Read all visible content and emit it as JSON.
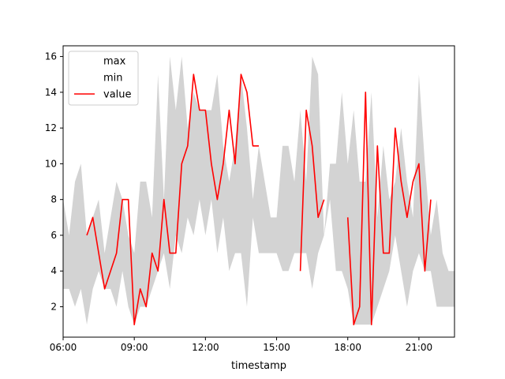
{
  "chart_data": {
    "type": "line",
    "title": "",
    "xlabel": "timestamp",
    "ylabel": "",
    "xlim": [
      0,
      990
    ],
    "ylim": [
      0.3,
      16.6
    ],
    "x_ticks": [
      {
        "value": 0,
        "label": "06:00"
      },
      {
        "value": 180,
        "label": "09:00"
      },
      {
        "value": 360,
        "label": "12:00"
      },
      {
        "value": 540,
        "label": "15:00"
      },
      {
        "value": 720,
        "label": "18:00"
      },
      {
        "value": 900,
        "label": "21:00"
      }
    ],
    "y_ticks": [
      2,
      4,
      6,
      8,
      10,
      12,
      14,
      16
    ],
    "grid": false,
    "legend": {
      "position": "top-left",
      "entries": [
        "max",
        "min",
        "value"
      ]
    },
    "band": {
      "x": [
        0,
        15,
        30,
        45,
        60,
        75,
        90,
        105,
        120,
        135,
        150,
        165,
        180,
        195,
        210,
        225,
        240,
        255,
        270,
        285,
        300,
        315,
        330,
        345,
        360,
        375,
        390,
        405,
        420,
        435,
        450,
        465,
        480,
        495,
        510,
        525,
        540,
        555,
        570,
        585,
        600,
        615,
        630,
        645,
        660,
        675,
        690,
        705,
        720,
        735,
        750,
        765,
        780,
        795,
        810,
        825,
        840,
        855,
        870,
        885,
        900,
        915,
        930,
        945,
        960,
        975,
        990
      ],
      "max": [
        8,
        6,
        9,
        10,
        6,
        7,
        8,
        5,
        7,
        9,
        8,
        6,
        5,
        9,
        9,
        7,
        15,
        8,
        16,
        13,
        16,
        12,
        14,
        13,
        13,
        13,
        15,
        11,
        9,
        11,
        15,
        12,
        8,
        11,
        9,
        7,
        7,
        11,
        11,
        9,
        13,
        9,
        16,
        15,
        6,
        10,
        10,
        14,
        10,
        13,
        9,
        9,
        14,
        7,
        11,
        8,
        9,
        12,
        9,
        7,
        15,
        10,
        6,
        8,
        5,
        4,
        4
      ],
      "min": [
        3,
        3,
        2,
        3,
        1,
        3,
        4,
        3,
        3,
        2,
        4,
        2,
        1,
        2,
        2,
        3,
        4,
        5,
        3,
        6,
        5,
        7,
        6,
        8,
        6,
        8,
        5,
        7,
        4,
        5,
        5,
        2,
        7,
        5,
        5,
        5,
        5,
        4,
        4,
        5,
        5,
        5,
        3,
        5,
        6,
        8,
        4,
        4,
        3,
        1,
        1,
        1,
        1,
        2,
        3,
        4,
        6,
        4,
        2,
        4,
        5,
        4,
        4,
        2,
        2,
        2,
        2
      ]
    },
    "series": [
      {
        "name": "value",
        "color": "#ff0000",
        "x": [
          60,
          75,
          90,
          105,
          120,
          135,
          150,
          165,
          180,
          195,
          210,
          225,
          240,
          255,
          270,
          285,
          300,
          315,
          330,
          345,
          360,
          375,
          390,
          405,
          420,
          435,
          450,
          465,
          480,
          495,
          510,
          525,
          540,
          555,
          570,
          585,
          600,
          615,
          630,
          645,
          660,
          675,
          690,
          705,
          720,
          735,
          750,
          765,
          780,
          795,
          810,
          825,
          840,
          855,
          870,
          885,
          900,
          915,
          930,
          945,
          960
        ],
        "y": [
          6,
          7,
          5,
          3,
          4,
          5,
          8,
          8,
          1,
          3,
          2,
          5,
          4,
          8,
          5,
          5,
          10,
          11,
          15,
          13,
          13,
          10,
          8,
          10,
          13,
          10,
          15,
          14,
          11,
          11,
          null,
          null,
          null,
          null,
          null,
          null,
          4,
          13,
          11,
          7,
          8,
          null,
          null,
          null,
          7,
          1,
          2,
          14,
          1,
          11,
          5,
          5,
          12,
          9,
          7,
          9,
          10,
          4,
          8,
          null,
          null
        ]
      }
    ]
  }
}
